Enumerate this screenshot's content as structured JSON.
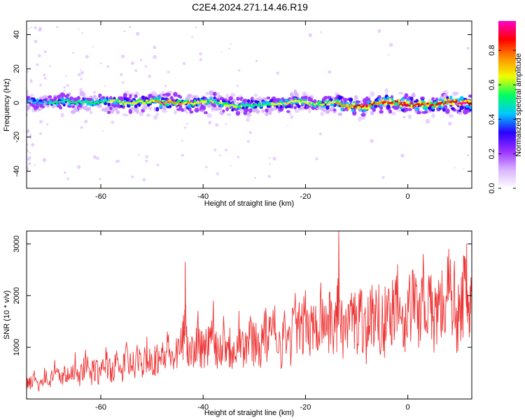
{
  "figure": {
    "title": "C2E4.2024.271.14.46.R19"
  },
  "chart_data": [
    {
      "type": "heatmap",
      "title": "C2E4.2024.271.14.46.R19",
      "xlabel": "Height of straight line (km)",
      "ylabel": "Frequency (Hz)",
      "xlim": [
        -74.5,
        12.5
      ],
      "ylim": [
        -50,
        48
      ],
      "x_ticks": [
        -60,
        -40,
        -20,
        0
      ],
      "y_ticks": [
        -40,
        -20,
        0,
        20,
        40
      ],
      "colorbar": {
        "label": "Normalized spectral amplitude",
        "range": [
          0,
          0.97
        ],
        "ticks": [
          0.0,
          0.2,
          0.4,
          0.6,
          0.8
        ],
        "colormap": [
          "#ffffff",
          "#d8b3ff",
          "#9a30ff",
          "#2a00ff",
          "#00c8ff",
          "#00ff60",
          "#f0ff00",
          "#ff9000",
          "#ff0000",
          "#ff00c8"
        ]
      },
      "ridge": {
        "x": [
          -74,
          -70,
          -66,
          -62,
          -58,
          -54,
          -50,
          -46,
          -42,
          -38,
          -34,
          -30,
          -26,
          -22,
          -18,
          -14,
          -12,
          -10,
          -8,
          -6,
          -4,
          -2,
          0,
          2,
          4,
          6,
          8,
          10,
          12
        ],
        "center_hz": [
          1,
          0,
          1,
          0,
          1,
          0,
          1,
          0,
          0,
          1,
          -2,
          -1,
          -1,
          1,
          -1,
          0,
          -2,
          -2,
          -2,
          0,
          1,
          0,
          -1,
          -1,
          -1,
          -1,
          1,
          0,
          0
        ],
        "peak_amplitude": [
          0.45,
          0.5,
          0.55,
          0.55,
          0.6,
          0.65,
          0.7,
          0.75,
          0.7,
          0.6,
          0.65,
          0.55,
          0.6,
          0.65,
          0.6,
          0.7,
          0.8,
          0.85,
          0.85,
          0.8,
          0.85,
          0.85,
          0.9,
          0.9,
          0.85,
          0.85,
          0.8,
          0.95,
          0.9
        ]
      }
    },
    {
      "type": "line",
      "xlabel": "Height of straight line (km)",
      "ylabel": "SNR (10 * v/v)",
      "xlim": [
        -74.5,
        12.5
      ],
      "ylim": [
        0,
        3250
      ],
      "x_ticks": [
        -60,
        -40,
        -20,
        0
      ],
      "y_ticks": [
        1000,
        2000,
        3000
      ],
      "color": "#ee3333",
      "x": [
        -74.5,
        -74,
        -73,
        -72,
        -71,
        -70,
        -69,
        -68,
        -67,
        -66,
        -65,
        -64,
        -63,
        -62,
        -61,
        -60,
        -59,
        -58,
        -57,
        -56,
        -55,
        -54,
        -53,
        -52,
        -51,
        -50,
        -49,
        -48,
        -47,
        -46,
        -45,
        -44,
        -43.5,
        -43,
        -42,
        -41,
        -40,
        -39,
        -38,
        -37,
        -36,
        -35,
        -34,
        -33,
        -32,
        -31,
        -30,
        -29,
        -28,
        -27,
        -26,
        -25,
        -24,
        -23,
        -22,
        -21,
        -20,
        -19,
        -18,
        -17,
        -16,
        -15,
        -14,
        -13.5,
        -13,
        -12,
        -11,
        -10,
        -9,
        -8,
        -7,
        -6,
        -5,
        -4,
        -3,
        -2,
        -1,
        0,
        1,
        2,
        3,
        4,
        5,
        6,
        7,
        8,
        9,
        10,
        11,
        11.5,
        12,
        12.5
      ],
      "y": [
        400,
        250,
        550,
        300,
        600,
        350,
        750,
        500,
        600,
        400,
        900,
        500,
        950,
        550,
        700,
        450,
        1000,
        600,
        850,
        500,
        1100,
        650,
        950,
        700,
        1200,
        800,
        1050,
        900,
        1300,
        900,
        1000,
        1500,
        2650,
        1200,
        1100,
        1700,
        1000,
        1400,
        1900,
        900,
        1600,
        1200,
        1100,
        1700,
        1000,
        1500,
        1400,
        1100,
        1700,
        1300,
        1800,
        1200,
        1500,
        1300,
        2050,
        1500,
        2100,
        1400,
        1800,
        2250,
        1800,
        1900,
        1600,
        3250,
        1700,
        1500,
        2050,
        1800,
        2100,
        1400,
        2200,
        1700,
        2000,
        1500,
        2300,
        2600,
        1800,
        2100,
        2500,
        1900,
        2800,
        2200,
        1600,
        2300,
        2000,
        2900,
        2400,
        1500,
        2750,
        3000,
        1200,
        1800
      ]
    }
  ]
}
